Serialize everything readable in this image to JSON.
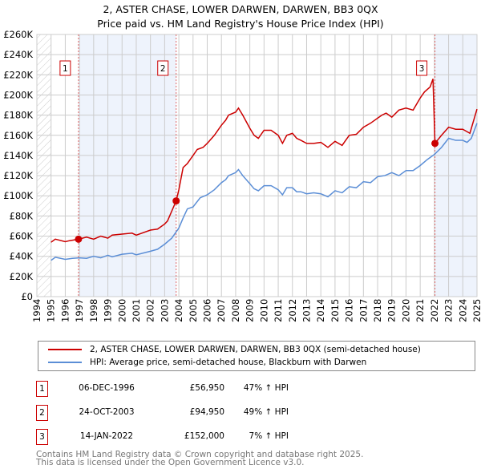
{
  "chart_data": {
    "type": "line",
    "title": "2, ASTER CHASE, LOWER DARWEN, DARWEN, BB3 0QX",
    "subtitle": "Price paid vs. HM Land Registry's House Price Index (HPI)",
    "xlim": [
      1994,
      2025
    ],
    "ylim": [
      0,
      260000
    ],
    "yticks": [
      "£0",
      "£20K",
      "£40K",
      "£60K",
      "£80K",
      "£100K",
      "£120K",
      "£140K",
      "£160K",
      "£180K",
      "£200K",
      "£220K",
      "£240K",
      "£260K"
    ],
    "xticks": [
      "1994",
      "1995",
      "1996",
      "1997",
      "1998",
      "1999",
      "2000",
      "2001",
      "2002",
      "2003",
      "2004",
      "2005",
      "2006",
      "2007",
      "2008",
      "2009",
      "2010",
      "2011",
      "2012",
      "2013",
      "2014",
      "2015",
      "2016",
      "2017",
      "2018",
      "2019",
      "2020",
      "2021",
      "2022",
      "2023",
      "2024",
      "2025"
    ],
    "series": [
      {
        "name": "2, ASTER CHASE, LOWER DARWEN, DARWEN, BB3 0QX (semi-detached house)",
        "color": "#cc0000",
        "x": [
          1995,
          1995.3,
          1996,
          1996.3,
          1996.93,
          1997.5,
          1998,
          1998.5,
          1999,
          1999.3,
          2000,
          2000.7,
          2001,
          2002,
          2002.5,
          2003,
          2003.2,
          2003.81,
          2004,
          2004.3,
          2004.6,
          2005,
          2005.3,
          2005.7,
          2006,
          2006.5,
          2007,
          2007.3,
          2007.5,
          2008,
          2008.2,
          2008.5,
          2009,
          2009.3,
          2009.6,
          2010,
          2010.5,
          2011,
          2011.3,
          2011.6,
          2012,
          2012.3,
          2012.6,
          2013,
          2013.5,
          2014,
          2014.5,
          2015,
          2015.5,
          2016,
          2016.5,
          2017,
          2017.5,
          2018,
          2018.3,
          2018.6,
          2019,
          2019.5,
          2020,
          2020.5,
          2021,
          2021.3,
          2021.7,
          2021.9,
          2022.04,
          2022.5,
          2023,
          2023.5,
          2024,
          2024.5,
          2025
        ],
        "y": [
          54000,
          57000,
          54500,
          55500,
          56950,
          59000,
          57000,
          60000,
          58000,
          61000,
          62000,
          63000,
          61000,
          66000,
          67000,
          72000,
          75000,
          94950,
          106000,
          128000,
          132000,
          140000,
          146000,
          148000,
          152000,
          160000,
          170000,
          175000,
          180000,
          183000,
          187000,
          180000,
          167000,
          160000,
          157000,
          165000,
          165000,
          160000,
          152000,
          160000,
          162000,
          157000,
          155000,
          152000,
          152000,
          153000,
          148000,
          154000,
          150000,
          160000,
          161000,
          168000,
          172000,
          177000,
          180000,
          182000,
          178000,
          185000,
          187000,
          185000,
          197000,
          203000,
          208000,
          216000,
          152000,
          160000,
          168000,
          166000,
          166000,
          162000,
          186000
        ]
      },
      {
        "name": "HPI: Average price, semi-detached house, Blackburn with Darwen",
        "color": "#5b8ed6",
        "x": [
          1995,
          1995.3,
          1996,
          1996.5,
          1997,
          1997.5,
          1998,
          1998.5,
          1999,
          1999.3,
          2000,
          2000.7,
          2001,
          2002,
          2002.5,
          2003,
          2003.5,
          2004,
          2004.3,
          2004.6,
          2005,
          2005.5,
          2006,
          2006.5,
          2007,
          2007.3,
          2007.5,
          2008,
          2008.2,
          2008.5,
          2009,
          2009.3,
          2009.6,
          2010,
          2010.5,
          2011,
          2011.3,
          2011.6,
          2012,
          2012.3,
          2012.6,
          2013,
          2013.5,
          2014,
          2014.5,
          2015,
          2015.5,
          2016,
          2016.5,
          2017,
          2017.5,
          2018,
          2018.5,
          2019,
          2019.5,
          2020,
          2020.5,
          2021,
          2021.5,
          2022,
          2022.5,
          2023,
          2023.5,
          2024,
          2024.3,
          2024.6,
          2025
        ],
        "y": [
          36000,
          39000,
          37000,
          38000,
          38500,
          38000,
          40000,
          38500,
          41000,
          39500,
          42000,
          43000,
          41500,
          45000,
          47000,
          52000,
          58000,
          68000,
          78000,
          87000,
          89000,
          98000,
          101000,
          106000,
          113000,
          116000,
          120000,
          123000,
          126000,
          120000,
          112000,
          107000,
          105000,
          110000,
          110000,
          106000,
          101000,
          108000,
          108000,
          104000,
          104000,
          102000,
          103000,
          102000,
          99000,
          105000,
          103000,
          109000,
          108000,
          114000,
          113000,
          119000,
          120000,
          123000,
          120000,
          125000,
          125000,
          130000,
          136000,
          141000,
          148000,
          157000,
          155000,
          155000,
          153000,
          157000,
          172000
        ]
      }
    ],
    "sales": [
      {
        "label": "1",
        "x": 1996.93,
        "y": 56950
      },
      {
        "label": "2",
        "x": 2003.81,
        "y": 94950
      },
      {
        "label": "3",
        "x": 2022.04,
        "y": 152000
      }
    ]
  },
  "legend": [
    "2, ASTER CHASE, LOWER DARWEN, DARWEN, BB3 0QX (semi-detached house)",
    "HPI: Average price, semi-detached house, Blackburn with Darwen"
  ],
  "transactions": [
    {
      "n": "1",
      "date": "06-DEC-1996",
      "price": "£56,950",
      "hpi": "47% ↑ HPI"
    },
    {
      "n": "2",
      "date": "24-OCT-2003",
      "price": "£94,950",
      "hpi": "49% ↑ HPI"
    },
    {
      "n": "3",
      "date": "14-JAN-2022",
      "price": "£152,000",
      "hpi": "7% ↑ HPI"
    }
  ],
  "footer": [
    "Contains HM Land Registry data © Crown copyright and database right 2025.",
    "This data is licensed under the Open Government Licence v3.0."
  ]
}
